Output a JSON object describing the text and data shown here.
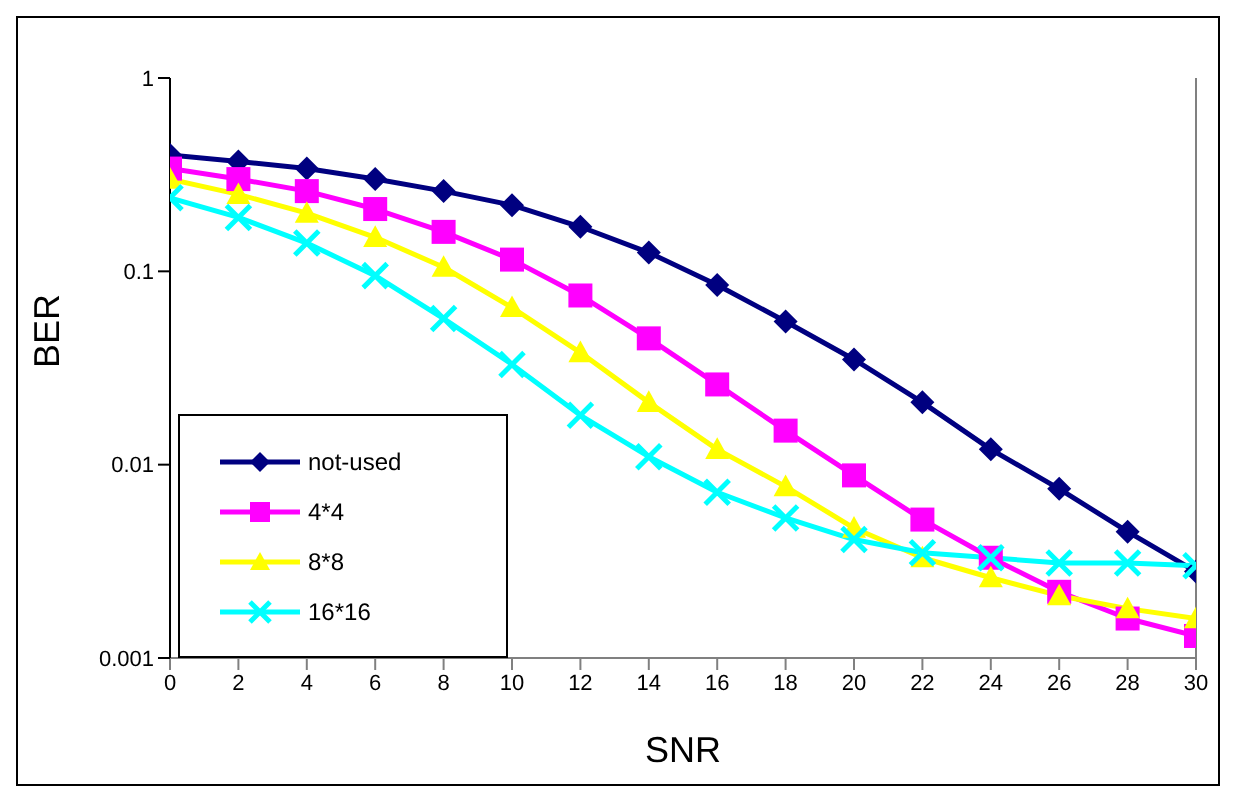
{
  "chart_data": {
    "type": "line",
    "xlabel": "SNR",
    "ylabel": "BER",
    "x": [
      0,
      2,
      4,
      6,
      8,
      10,
      12,
      14,
      16,
      18,
      20,
      22,
      24,
      26,
      28,
      30
    ],
    "log": "y",
    "xlim": [
      0,
      30
    ],
    "xticks": [
      0,
      2,
      4,
      6,
      8,
      10,
      12,
      14,
      16,
      18,
      20,
      22,
      24,
      26,
      28,
      30
    ],
    "ylim": [
      0.001,
      1
    ],
    "yticks": [
      0.001,
      0.01,
      0.1,
      1
    ],
    "grid": false,
    "legend": "bottom left",
    "line_style": "solid",
    "series": [
      {
        "name": "not-used",
        "color": "#000080",
        "marker": "diamond",
        "values": [
          0.4,
          0.37,
          0.34,
          0.3,
          0.26,
          0.22,
          0.17,
          0.125,
          0.085,
          0.055,
          0.035,
          0.021,
          0.012,
          0.0075,
          0.0045,
          0.0028
        ]
      },
      {
        "name": "4*4",
        "color": "#ff00ff",
        "marker": "square",
        "values": [
          0.34,
          0.3,
          0.26,
          0.21,
          0.16,
          0.115,
          0.075,
          0.045,
          0.026,
          0.015,
          0.0088,
          0.0052,
          0.0033,
          0.0022,
          0.0016,
          0.0013
        ]
      },
      {
        "name": "8*8",
        "color": "#ffff00",
        "marker": "triangle",
        "values": [
          0.3,
          0.25,
          0.2,
          0.15,
          0.105,
          0.065,
          0.038,
          0.021,
          0.012,
          0.0077,
          0.0047,
          0.0033,
          0.0026,
          0.0021,
          0.0018,
          0.0016
        ]
      },
      {
        "name": "16*16",
        "color": "#00ffff",
        "marker": "cross",
        "values": [
          0.24,
          0.19,
          0.14,
          0.095,
          0.057,
          0.033,
          0.018,
          0.011,
          0.0072,
          0.0053,
          0.0041,
          0.0035,
          0.0033,
          0.0031,
          0.0031,
          0.003
        ]
      }
    ]
  }
}
